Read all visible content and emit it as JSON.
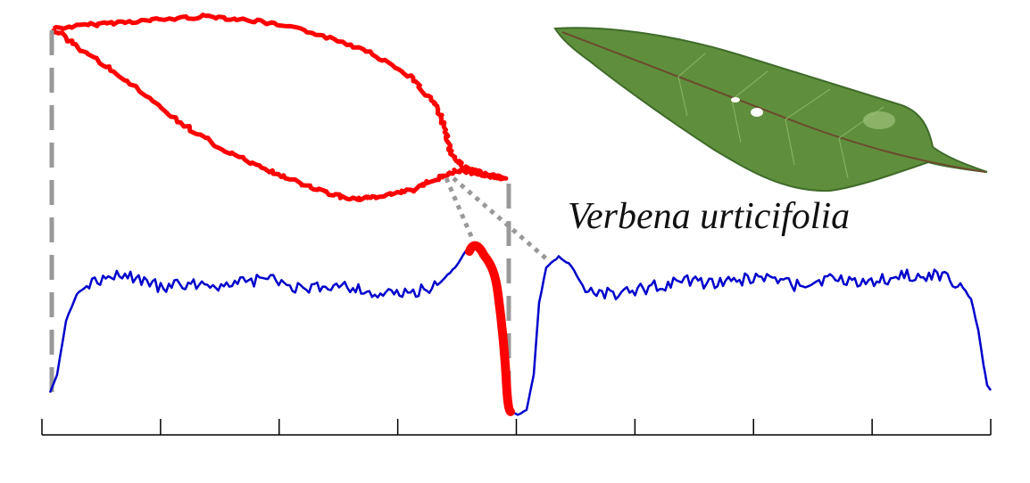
{
  "species_name": "Verbena urticifolia",
  "colors": {
    "outline": "#ff0000",
    "signature": "#0000cc",
    "highlight": "#ff0000",
    "connector": "#999999",
    "axis": "#000000",
    "leaf_dark": "#3f6b2a",
    "leaf_mid": "#5f8f3c",
    "leaf_light": "#86b060"
  },
  "elements": {
    "leaf_outline": "leaf contour trace",
    "signature_curve": "contour signature",
    "leaf_photo": "leaf photograph"
  },
  "axis": {
    "tick_count": 9
  }
}
